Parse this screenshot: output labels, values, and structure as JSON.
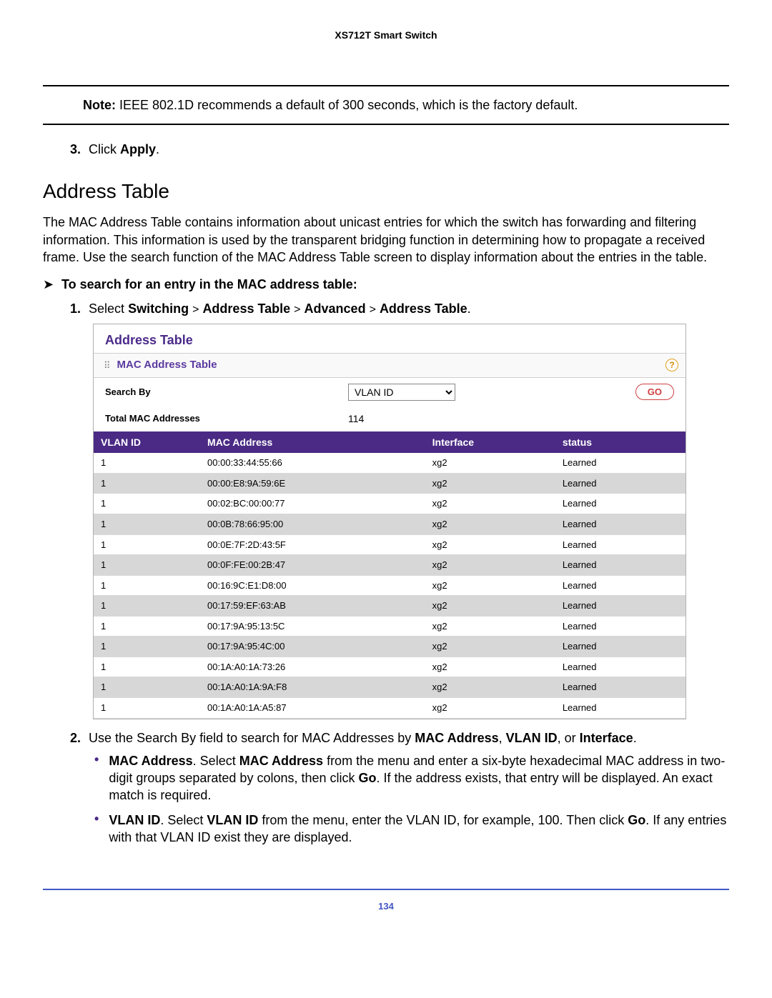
{
  "header": {
    "title": "XS712T Smart Switch"
  },
  "note": {
    "label": "Note:",
    "text": " IEEE 802.1D recommends a default of 300 seconds, which is the factory default."
  },
  "step3": {
    "num": "3.",
    "prefix": "Click ",
    "bold": "Apply",
    "suffix": "."
  },
  "section_title": "Address Table",
  "intro": "The MAC Address Table contains information about unicast entries for which the switch has forwarding and filtering information. This information is used by the transparent bridging function in determining how to propagate a received frame. Use the search function of the MAC Address Table screen to display information about the entries in the table.",
  "search_heading": {
    "arrow": "➤",
    "text": "To search for an entry in the MAC address table:"
  },
  "step1": {
    "num": "1.",
    "prefix": "Select ",
    "p1": "Switching",
    "g1": ">",
    "p2": "Address Table",
    "g2": ">",
    "p3": "Advanced",
    "g3": ">",
    "p4": "Address Table",
    "suffix": "."
  },
  "shot": {
    "title": "Address Table",
    "subtitle": "MAC Address Table",
    "help_icon": "?",
    "search_label": "Search By",
    "search_options": [
      "VLAN ID"
    ],
    "go_label": "GO",
    "total_label": "Total MAC Addresses",
    "total_value": "114",
    "columns": [
      "VLAN ID",
      "MAC Address",
      "Interface",
      "status"
    ],
    "rows": [
      [
        "1",
        "00:00:33:44:55:66",
        "xg2",
        "Learned"
      ],
      [
        "1",
        "00:00:E8:9A:59:6E",
        "xg2",
        "Learned"
      ],
      [
        "1",
        "00:02:BC:00:00:77",
        "xg2",
        "Learned"
      ],
      [
        "1",
        "00:0B:78:66:95:00",
        "xg2",
        "Learned"
      ],
      [
        "1",
        "00:0E:7F:2D:43:5F",
        "xg2",
        "Learned"
      ],
      [
        "1",
        "00:0F:FE:00:2B:47",
        "xg2",
        "Learned"
      ],
      [
        "1",
        "00:16:9C:E1:D8:00",
        "xg2",
        "Learned"
      ],
      [
        "1",
        "00:17:59:EF:63:AB",
        "xg2",
        "Learned"
      ],
      [
        "1",
        "00:17:9A:95:13:5C",
        "xg2",
        "Learned"
      ],
      [
        "1",
        "00:17:9A:95:4C:00",
        "xg2",
        "Learned"
      ],
      [
        "1",
        "00:1A:A0:1A:73:26",
        "xg2",
        "Learned"
      ],
      [
        "1",
        "00:1A:A0:1A:9A:F8",
        "xg2",
        "Learned"
      ],
      [
        "1",
        "00:1A:A0:1A:A5:87",
        "xg2",
        "Learned"
      ]
    ]
  },
  "step2": {
    "num": "2.",
    "t0": "Use the Search By field to search for MAC Addresses by ",
    "b1": "MAC Address",
    "c1": ", ",
    "b2": "VLAN ID",
    "c2": ", or ",
    "b3": "Interface",
    "suffix": "."
  },
  "bullet1": {
    "b1": "MAC Address",
    "t1": ". Select ",
    "b2": "MAC Address",
    "t2": " from the menu and enter a six-byte hexadecimal MAC address in two-digit groups separated by colons, then click ",
    "b3": "Go",
    "t3": ". If the address exists, that entry will be displayed. An exact match is required."
  },
  "bullet2": {
    "b1": "VLAN ID",
    "t1": ". Select ",
    "b2": "VLAN ID",
    "t2": " from the menu, enter the VLAN ID, for example, 100. Then click ",
    "b3": "Go",
    "t3": ". If any entries with that VLAN ID exist they are displayed."
  },
  "page_number": "134",
  "colors": {
    "purple_header": "#4a2a84",
    "title_purple": "#4b2a8a",
    "go_red": "#d04040",
    "footer_blue": "#4256c4"
  }
}
